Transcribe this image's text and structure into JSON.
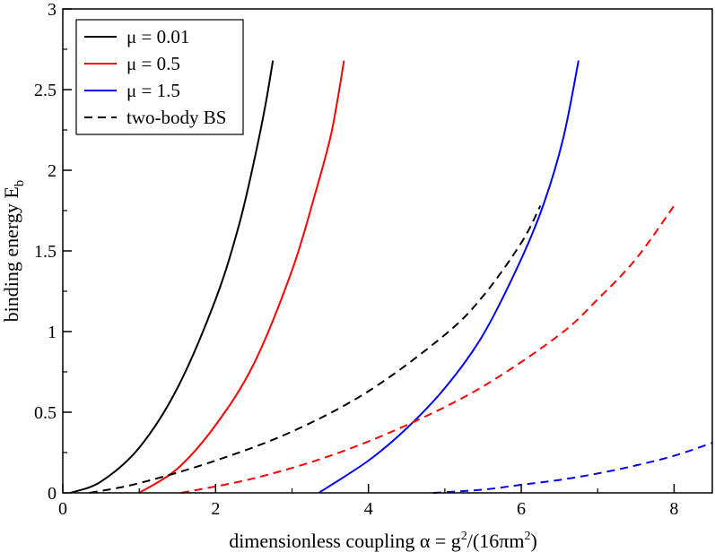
{
  "chart_data": {
    "type": "line",
    "xlabel": {
      "prefix": "dimensionless coupling ",
      "symbol": "α",
      "mid": " = g",
      "sup1": "2",
      "mid2": "/(16πm",
      "sup2": "2",
      "suffix": ")"
    },
    "ylabel": {
      "main": "binding energy  E",
      "sub": "b"
    },
    "xlim": [
      0,
      8.5
    ],
    "ylim": [
      0,
      3
    ],
    "x_ticks": [
      0,
      2,
      4,
      6,
      8
    ],
    "y_ticks": [
      0,
      0.5,
      1,
      1.5,
      2,
      2.5,
      3
    ],
    "x_tick_labels": [
      "0",
      "2",
      "4",
      "6",
      "8"
    ],
    "y_tick_labels": [
      "0",
      "0.5",
      "1",
      "1.5",
      "2",
      "2.5",
      "3"
    ],
    "legend_position": "top-left",
    "legend": [
      {
        "label": "μ = 0.01",
        "color": "#000000",
        "style": "solid"
      },
      {
        "label": "μ = 0.5",
        "color": "#ff0000",
        "style": "solid"
      },
      {
        "label": "μ = 1.5",
        "color": "#0000ff",
        "style": "solid"
      },
      {
        "label": "two-body BS",
        "color": "#000000",
        "style": "dashed"
      }
    ],
    "series": [
      {
        "name": "μ = 0.01",
        "color": "#000000",
        "style": "solid",
        "x": [
          0.1,
          0.5,
          1.0,
          1.5,
          2.0,
          2.3,
          2.5,
          2.65,
          2.75
        ],
        "y": [
          0.0,
          0.07,
          0.28,
          0.65,
          1.2,
          1.65,
          2.05,
          2.4,
          2.68
        ]
      },
      {
        "name": "μ = 0.5",
        "color": "#ff0000",
        "style": "solid",
        "x": [
          1.0,
          1.5,
          2.0,
          2.5,
          3.0,
          3.3,
          3.5,
          3.6,
          3.68
        ],
        "y": [
          0.0,
          0.15,
          0.42,
          0.8,
          1.38,
          1.85,
          2.2,
          2.45,
          2.68
        ]
      },
      {
        "name": "μ = 1.5",
        "color": "#0000ff",
        "style": "solid",
        "x": [
          3.35,
          4.0,
          4.5,
          5.0,
          5.5,
          6.0,
          6.3,
          6.55,
          6.75
        ],
        "y": [
          0.0,
          0.2,
          0.4,
          0.65,
          0.98,
          1.45,
          1.8,
          2.2,
          2.68
        ]
      },
      {
        "name": "two-body BS (μ = 0.01)",
        "color": "#000000",
        "style": "dashed",
        "x": [
          0.35,
          1.0,
          2.0,
          3.0,
          4.0,
          5.0,
          5.5,
          6.0,
          6.25
        ],
        "y": [
          0.0,
          0.06,
          0.2,
          0.38,
          0.63,
          0.98,
          1.22,
          1.55,
          1.78
        ]
      },
      {
        "name": "two-body BS (μ = 0.5)",
        "color": "#ff0000",
        "style": "dashed",
        "x": [
          1.55,
          2.5,
          3.5,
          4.5,
          5.5,
          6.5,
          7.0,
          7.5,
          8.0
        ],
        "y": [
          0.0,
          0.09,
          0.23,
          0.42,
          0.66,
          0.98,
          1.2,
          1.45,
          1.78
        ]
      },
      {
        "name": "two-body BS (μ = 1.5)",
        "color": "#0000ff",
        "style": "dashed",
        "x": [
          4.85,
          5.5,
          6.0,
          6.5,
          7.0,
          7.5,
          8.0,
          8.5
        ],
        "y": [
          0.0,
          0.02,
          0.05,
          0.08,
          0.12,
          0.17,
          0.23,
          0.31
        ]
      }
    ]
  }
}
